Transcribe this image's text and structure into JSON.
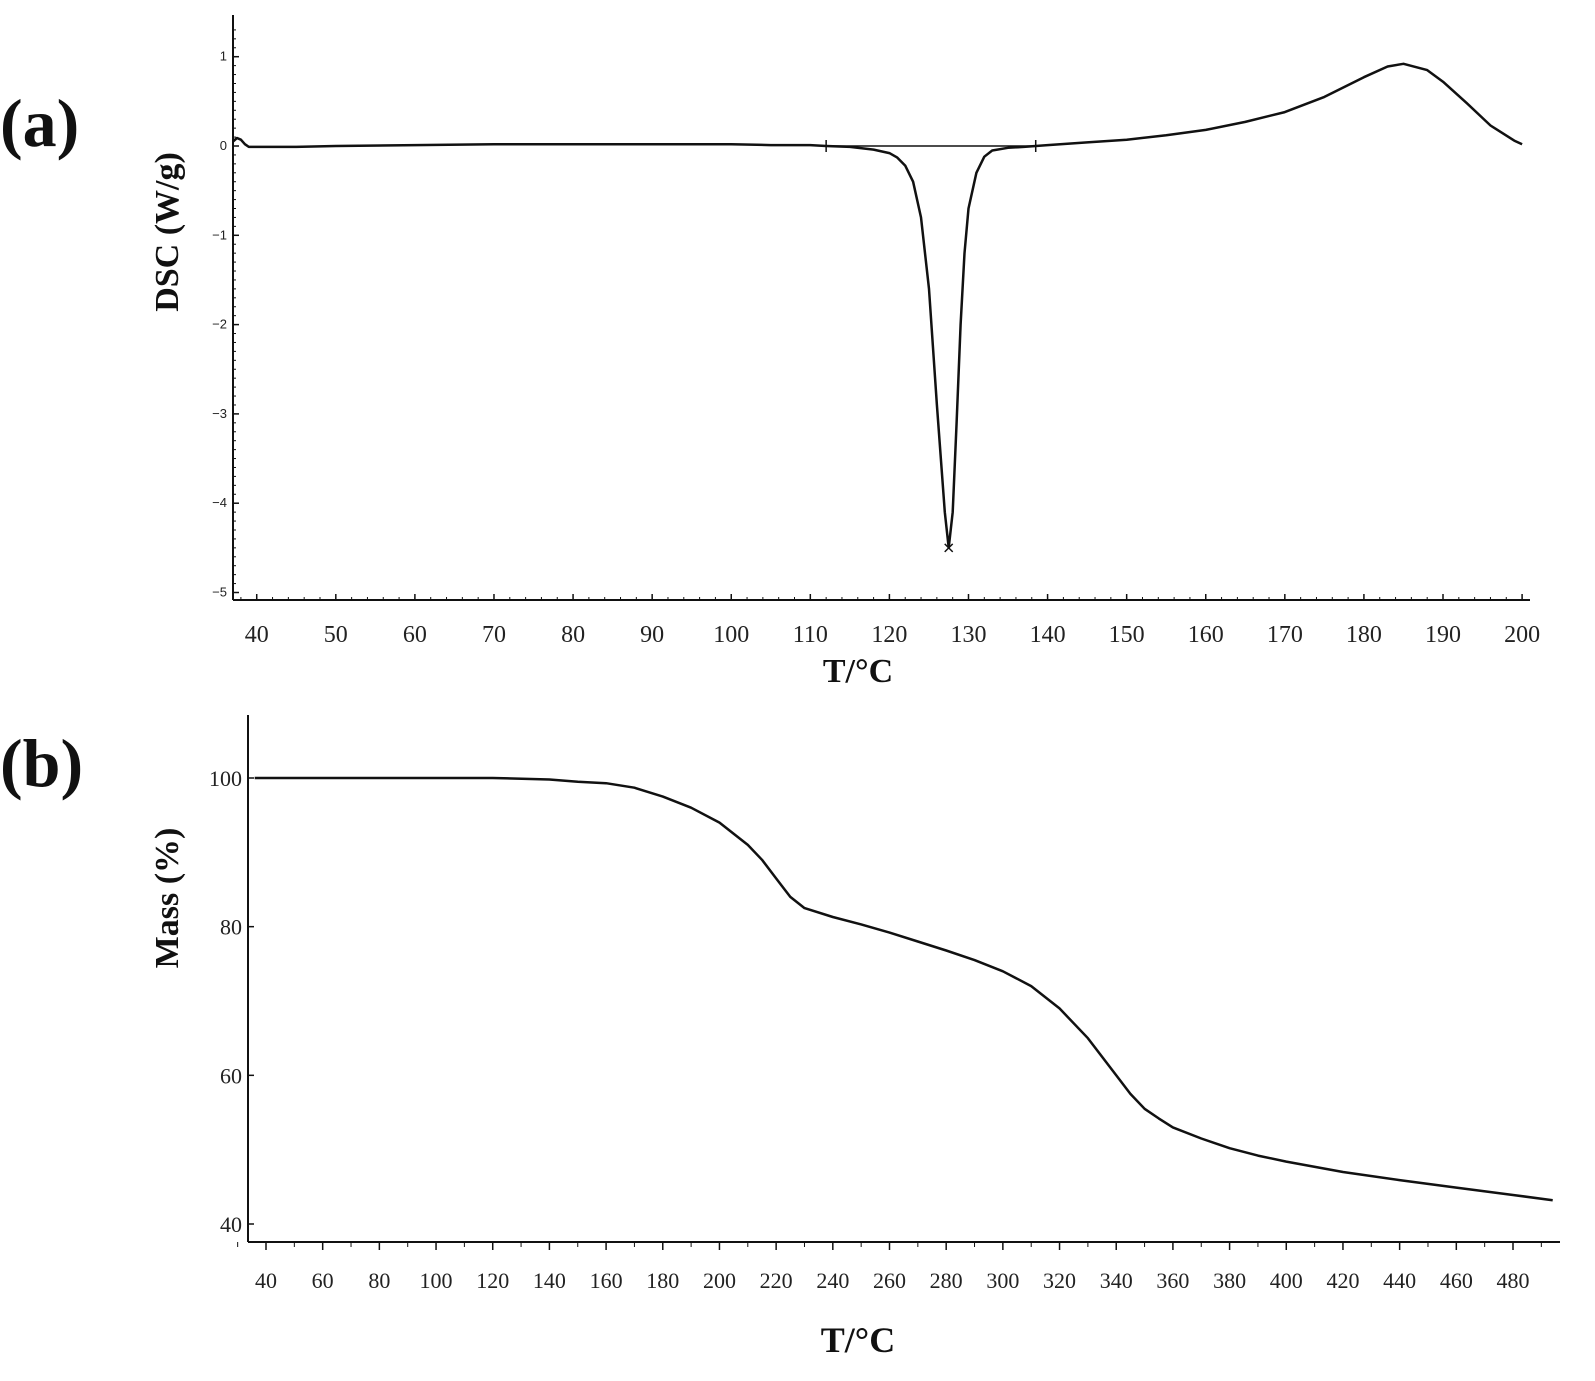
{
  "chart_data": [
    {
      "type": "line",
      "panel_label": "(a)",
      "xlabel": "T/°C",
      "ylabel": "DSC (W/g)",
      "xlim": [
        37,
        201
      ],
      "ylim": [
        -5,
        1.4
      ],
      "x_ticks": [
        40,
        50,
        60,
        70,
        80,
        90,
        100,
        110,
        120,
        130,
        140,
        150,
        160,
        170,
        180,
        190,
        200
      ],
      "y_ticks": [
        1,
        0,
        -1,
        -2,
        -3,
        -4,
        -5
      ],
      "y_tick_labels": [
        "1",
        "0",
        "−1",
        "−2",
        "−3",
        "−4",
        "−5"
      ],
      "series": [
        {
          "x": [
            37,
            37.5,
            38,
            38.5,
            39,
            40,
            45,
            50,
            60,
            70,
            80,
            90,
            100,
            105,
            110,
            112,
            115,
            118,
            120,
            121,
            122,
            123,
            124,
            125,
            126,
            127,
            127.5,
            128,
            128.5,
            129,
            129.5,
            130,
            131,
            132,
            133,
            135,
            137,
            138.5,
            140,
            145,
            150,
            155,
            160,
            165,
            170,
            175,
            180,
            183,
            185,
            188,
            190,
            193,
            196,
            199,
            200
          ],
          "y": [
            0.05,
            0.09,
            0.07,
            0.02,
            -0.01,
            -0.01,
            -0.01,
            0.0,
            0.01,
            0.02,
            0.02,
            0.02,
            0.02,
            0.01,
            0.01,
            0.0,
            -0.01,
            -0.04,
            -0.08,
            -0.13,
            -0.22,
            -0.4,
            -0.8,
            -1.6,
            -2.9,
            -4.1,
            -4.5,
            -4.1,
            -3.1,
            -2.0,
            -1.2,
            -0.7,
            -0.3,
            -0.12,
            -0.05,
            -0.02,
            -0.01,
            0.0,
            0.01,
            0.04,
            0.07,
            0.12,
            0.18,
            0.27,
            0.38,
            0.55,
            0.77,
            0.89,
            0.92,
            0.85,
            0.72,
            0.48,
            0.23,
            0.06,
            0.02
          ]
        }
      ],
      "integration_baseline": {
        "x": [
          112,
          138.5
        ],
        "y": [
          0.0,
          0.0
        ]
      },
      "peak_marker": {
        "x": 127.5,
        "y": -4.5
      }
    },
    {
      "type": "line",
      "panel_label": "(b)",
      "xlabel": "T/°C",
      "ylabel": "Mass (%)",
      "xlim": [
        36,
        496
      ],
      "ylim": [
        39,
        109
      ],
      "x_ticks": [
        40,
        60,
        80,
        100,
        120,
        140,
        160,
        180,
        200,
        220,
        240,
        260,
        280,
        300,
        320,
        340,
        360,
        380,
        400,
        420,
        440,
        460,
        480
      ],
      "y_ticks": [
        100,
        80,
        60,
        40
      ],
      "series": [
        {
          "x": [
            36,
            60,
            80,
            100,
            120,
            140,
            150,
            160,
            170,
            180,
            190,
            200,
            210,
            215,
            220,
            225,
            230,
            240,
            250,
            260,
            270,
            280,
            290,
            300,
            310,
            320,
            330,
            340,
            345,
            350,
            355,
            360,
            370,
            380,
            390,
            400,
            420,
            440,
            460,
            480,
            494
          ],
          "y": [
            100,
            100,
            100,
            100,
            100,
            99.8,
            99.5,
            99.3,
            98.7,
            97.5,
            96,
            94,
            91,
            89,
            86.5,
            84,
            82.5,
            81.3,
            80.3,
            79.2,
            78,
            76.8,
            75.5,
            74,
            72,
            69,
            65,
            60,
            57.5,
            55.5,
            54.2,
            53,
            51.5,
            50.2,
            49.2,
            48.4,
            47,
            45.9,
            44.9,
            43.9,
            43.2
          ]
        }
      ]
    }
  ]
}
